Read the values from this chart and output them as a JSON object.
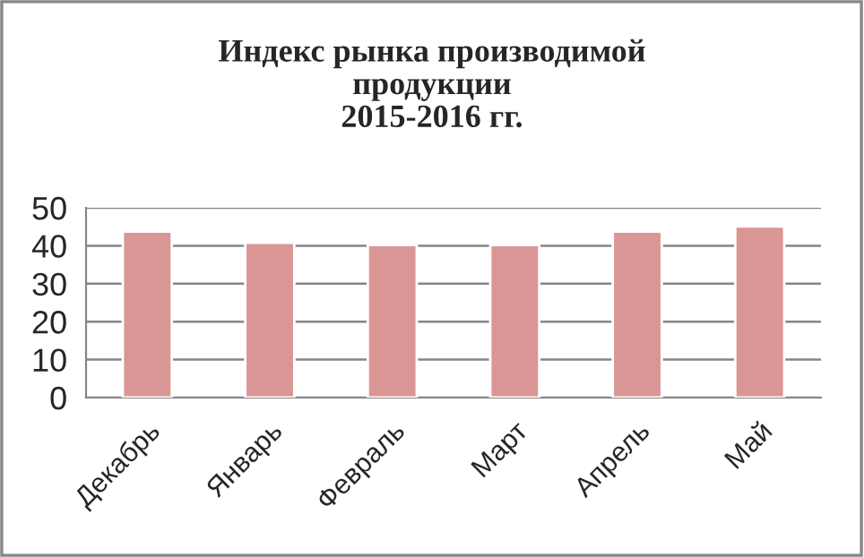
{
  "chart_data": {
    "type": "bar",
    "title": "Индекс рынка производимой\nпродукции\n2015-2016 гг.",
    "categories": [
      "Декабрь",
      "Январь",
      "Февраль",
      "Март",
      "Апрель",
      "Май"
    ],
    "values": [
      43.7,
      40.8,
      40.2,
      40.2,
      43.7,
      45.1
    ],
    "color": "#d99694",
    "ylim": [
      0,
      50
    ],
    "yticks": [
      0,
      10,
      20,
      30,
      40,
      50
    ],
    "grid": "y",
    "legend": false
  }
}
